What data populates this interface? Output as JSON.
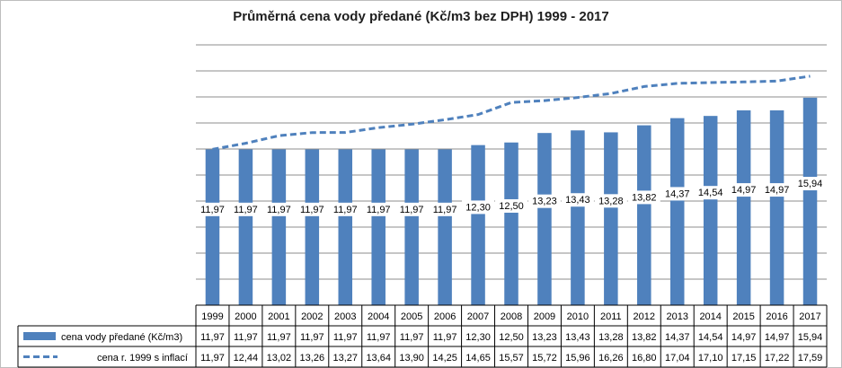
{
  "chart_data": {
    "type": "bar",
    "title": "Průměrná cena vody předané (Kč/m3 bez DPH) 1999 - 2017",
    "categories": [
      "1999",
      "2000",
      "2001",
      "2002",
      "2003",
      "2004",
      "2005",
      "2006",
      "2007",
      "2008",
      "2009",
      "2010",
      "2011",
      "2012",
      "2013",
      "2014",
      "2015",
      "2016",
      "2017"
    ],
    "series": [
      {
        "name": "cena vody předané (Kč/m3)",
        "type": "bar",
        "color": "#4f81bd",
        "values": [
          11.97,
          11.97,
          11.97,
          11.97,
          11.97,
          11.97,
          11.97,
          11.97,
          12.3,
          12.5,
          13.23,
          13.43,
          13.28,
          13.82,
          14.37,
          14.54,
          14.97,
          14.97,
          15.94
        ],
        "labels": [
          "11,97",
          "11,97",
          "11,97",
          "11,97",
          "11,97",
          "11,97",
          "11,97",
          "11,97",
          "12,30",
          "12,50",
          "13,23",
          "13,43",
          "13,28",
          "13,82",
          "14,37",
          "14,54",
          "14,97",
          "14,97",
          "15,94"
        ]
      },
      {
        "name": "cena r. 1999 s inflací",
        "type": "line",
        "style": "dashed",
        "color": "#4f81bd",
        "values": [
          11.97,
          12.44,
          13.02,
          13.26,
          13.27,
          13.64,
          13.9,
          14.25,
          14.65,
          15.57,
          15.72,
          15.96,
          16.26,
          16.8,
          17.04,
          17.1,
          17.15,
          17.22,
          17.59
        ],
        "labels": [
          "11,97",
          "12,44",
          "13,02",
          "13,26",
          "13,27",
          "13,64",
          "13,90",
          "14,25",
          "14,65",
          "15,57",
          "15,72",
          "15,96",
          "16,26",
          "16,80",
          "17,04",
          "17,10",
          "17,15",
          "17,22",
          "17,59"
        ]
      }
    ],
    "ylim": [
      0,
      20
    ],
    "grid": true,
    "legend": "data-table",
    "xlabel": "",
    "ylabel": ""
  }
}
